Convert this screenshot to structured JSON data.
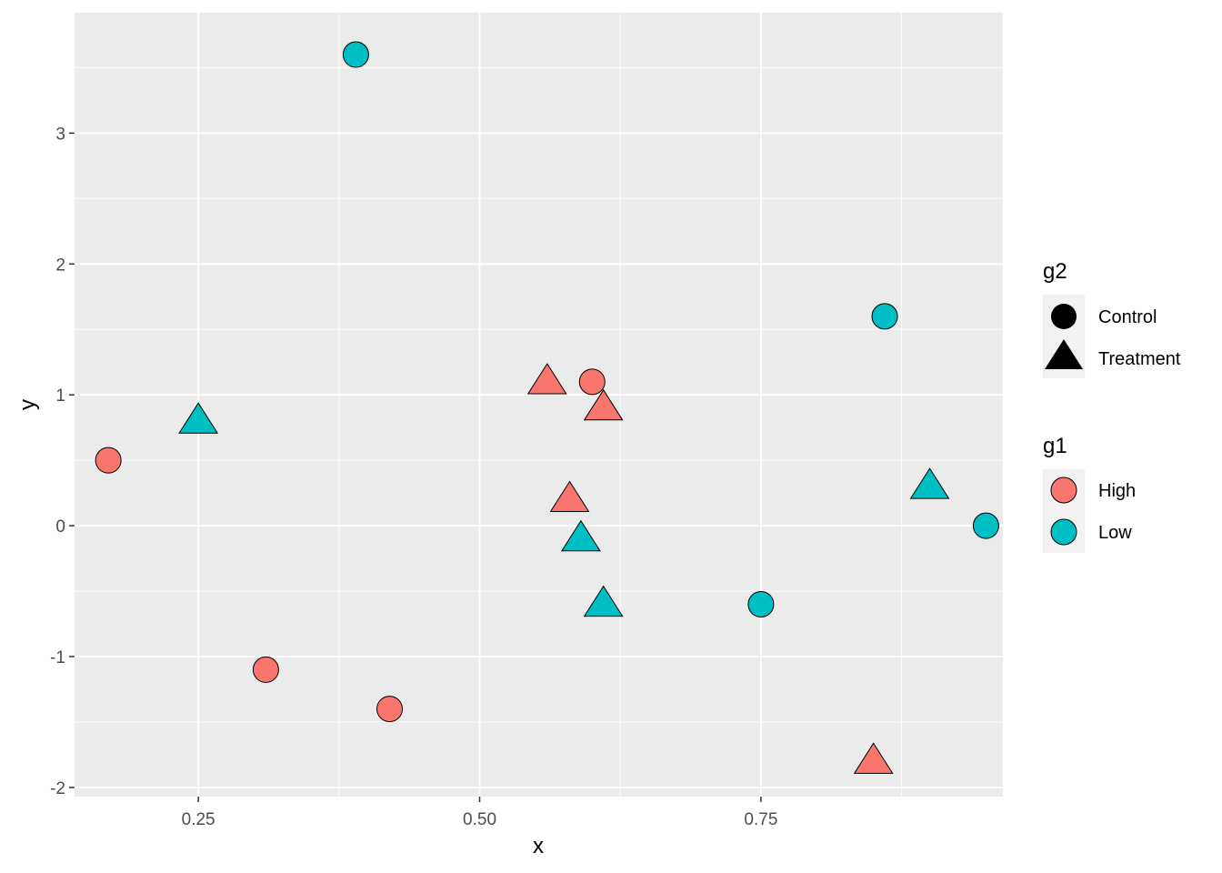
{
  "chart_data": {
    "type": "scatter",
    "xlabel": "x",
    "ylabel": "y",
    "xlim": [
      0.14,
      0.965
    ],
    "ylim": [
      -2.07,
      3.92
    ],
    "x_ticks": [
      0.25,
      0.5,
      0.75
    ],
    "x_tick_labels": [
      "0.25",
      "0.50",
      "0.75"
    ],
    "y_ticks": [
      -2,
      -1,
      0,
      1,
      2,
      3
    ],
    "y_tick_labels": [
      "-2",
      "-1",
      "0",
      "1",
      "2",
      "3"
    ],
    "grid": true,
    "background": "#ebebeb",
    "colors": {
      "High": "#f8766d",
      "Low": "#00bfc4"
    },
    "points": [
      {
        "x": 0.17,
        "y": 0.5,
        "g1": "High",
        "g2": "Control"
      },
      {
        "x": 0.31,
        "y": -1.1,
        "g1": "High",
        "g2": "Control"
      },
      {
        "x": 0.42,
        "y": -1.4,
        "g1": "High",
        "g2": "Control"
      },
      {
        "x": 0.6,
        "y": 1.1,
        "g1": "High",
        "g2": "Control"
      },
      {
        "x": 0.39,
        "y": 3.6,
        "g1": "Low",
        "g2": "Control"
      },
      {
        "x": 0.75,
        "y": -0.6,
        "g1": "Low",
        "g2": "Control"
      },
      {
        "x": 0.86,
        "y": 1.6,
        "g1": "Low",
        "g2": "Control"
      },
      {
        "x": 0.95,
        "y": 0.0,
        "g1": "Low",
        "g2": "Control"
      },
      {
        "x": 0.56,
        "y": 1.1,
        "g1": "High",
        "g2": "Treatment"
      },
      {
        "x": 0.61,
        "y": 0.9,
        "g1": "High",
        "g2": "Treatment"
      },
      {
        "x": 0.58,
        "y": 0.2,
        "g1": "High",
        "g2": "Treatment"
      },
      {
        "x": 0.85,
        "y": -1.8,
        "g1": "High",
        "g2": "Treatment"
      },
      {
        "x": 0.25,
        "y": 0.8,
        "g1": "Low",
        "g2": "Treatment"
      },
      {
        "x": 0.59,
        "y": -0.1,
        "g1": "Low",
        "g2": "Treatment"
      },
      {
        "x": 0.61,
        "y": -0.6,
        "g1": "Low",
        "g2": "Treatment"
      },
      {
        "x": 0.9,
        "y": 0.3,
        "g1": "Low",
        "g2": "Treatment"
      }
    ],
    "legends": [
      {
        "title": "g2",
        "type": "shape",
        "entries": [
          {
            "label": "Control",
            "shape": "circle"
          },
          {
            "label": "Treatment",
            "shape": "triangle"
          }
        ]
      },
      {
        "title": "g1",
        "type": "fill",
        "entries": [
          {
            "label": "High",
            "color": "#f8766d"
          },
          {
            "label": "Low",
            "color": "#00bfc4"
          }
        ]
      }
    ],
    "legend_position": "right"
  }
}
